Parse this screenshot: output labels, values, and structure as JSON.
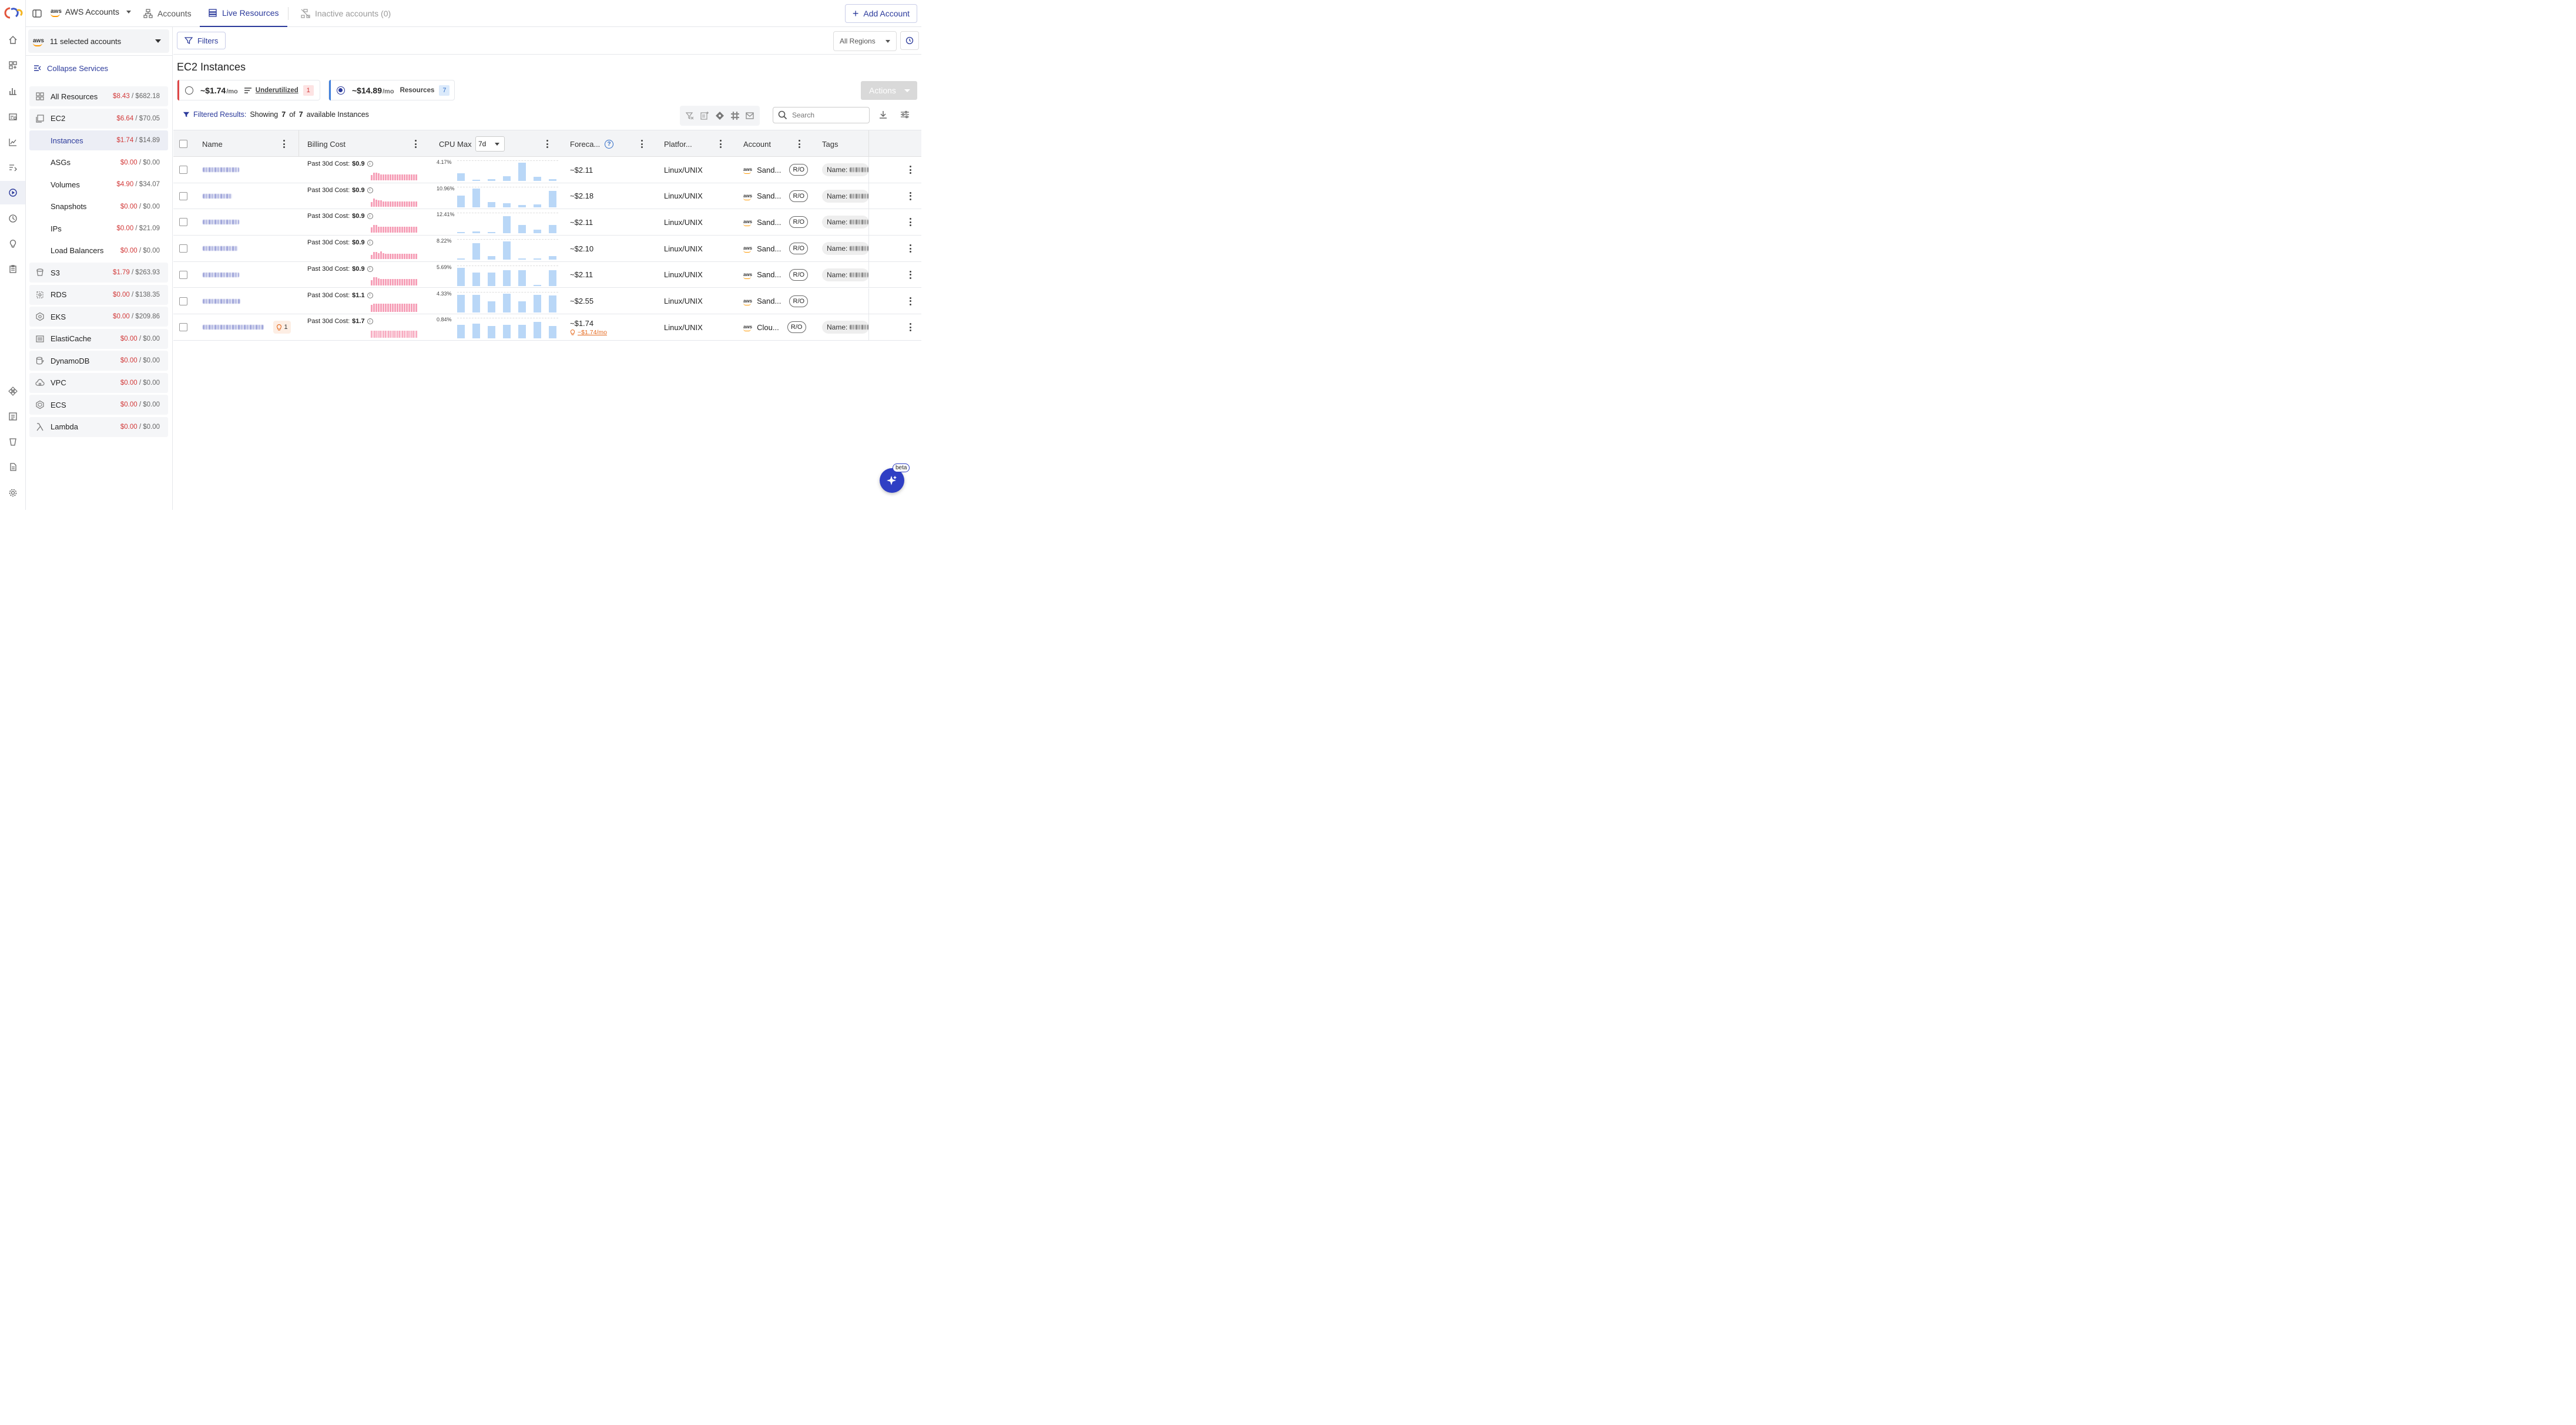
{
  "topbar": {
    "brand_label": "AWS Accounts",
    "tabs": [
      {
        "label": "Accounts"
      },
      {
        "label": "Live Resources"
      },
      {
        "label": "Inactive accounts (0)"
      }
    ],
    "add_account_label": "Add Account"
  },
  "sidebar": {
    "account_selector": "11 selected accounts",
    "collapse_label": "Collapse Services",
    "items": [
      {
        "name": "All Resources",
        "cost": "$8.43",
        "total": "/ $682.18"
      },
      {
        "name": "EC2",
        "cost": "$6.64",
        "total": "/ $70.05"
      },
      {
        "name": "Instances",
        "cost": "$1.74",
        "total": "/ $14.89"
      },
      {
        "name": "ASGs",
        "cost": "$0.00",
        "total": "/ $0.00"
      },
      {
        "name": "Volumes",
        "cost": "$4.90",
        "total": "/ $34.07"
      },
      {
        "name": "Snapshots",
        "cost": "$0.00",
        "total": "/ $0.00"
      },
      {
        "name": "IPs",
        "cost": "$0.00",
        "total": "/ $21.09"
      },
      {
        "name": "Load Balancers",
        "cost": "$0.00",
        "total": "/ $0.00"
      },
      {
        "name": "S3",
        "cost": "$1.79",
        "total": "/ $263.93"
      },
      {
        "name": "RDS",
        "cost": "$0.00",
        "total": "/ $138.35"
      },
      {
        "name": "EKS",
        "cost": "$0.00",
        "total": "/ $209.86"
      },
      {
        "name": "ElastiCache",
        "cost": "$0.00",
        "total": "/ $0.00"
      },
      {
        "name": "DynamoDB",
        "cost": "$0.00",
        "total": "/ $0.00"
      },
      {
        "name": "VPC",
        "cost": "$0.00",
        "total": "/ $0.00"
      },
      {
        "name": "ECS",
        "cost": "$0.00",
        "total": "/ $0.00"
      },
      {
        "name": "Lambda",
        "cost": "$0.00",
        "total": "/ $0.00"
      }
    ]
  },
  "main": {
    "filters_label": "Filters",
    "regions_label": "All Regions",
    "title": "EC2 Instances",
    "cards": [
      {
        "amount": "~$1.74",
        "per": "/mo",
        "label": "Underutilized",
        "count": "1"
      },
      {
        "amount": "~$14.89",
        "per": "/mo",
        "label": "Resources",
        "count": "7"
      }
    ],
    "actions_label": "Actions",
    "filtered": {
      "prefix": "Filtered Results:",
      "showing": "Showing",
      "shown": "7",
      "of": "of",
      "total": "7",
      "suffix": "available Instances"
    },
    "search_placeholder": "Search",
    "columns": {
      "name": "Name",
      "billing": "Billing Cost",
      "cpu": "CPU Max",
      "cpu_range": "7d",
      "forecast": "Foreca...",
      "platform": "Platfor...",
      "account": "Account",
      "tags": "Tags"
    },
    "rows": [
      {
        "past_label": "Past 30d Cost:",
        "past_cost": "$0.9",
        "cpu_peak": "4.17%",
        "cpu_bars": [
          0.4,
          0.05,
          0.1,
          0.25,
          0.95,
          0.2,
          0.1
        ],
        "forecast": "~$2.11",
        "platform": "Linux/UNIX",
        "account": "Sand...",
        "ro": "R/O",
        "tag_label": "Name:"
      },
      {
        "past_label": "Past 30d Cost:",
        "past_cost": "$0.9",
        "cpu_peak": "10.96%",
        "cpu_bars": [
          0.6,
          0.95,
          0.25,
          0.2,
          0.1,
          0.15,
          0.85
        ],
        "forecast": "~$2.18",
        "platform": "Linux/UNIX",
        "account": "Sand...",
        "ro": "R/O",
        "tag_label": "Name:"
      },
      {
        "past_label": "Past 30d Cost:",
        "past_cost": "$0.9",
        "cpu_peak": "12.41%",
        "cpu_bars": [
          0.05,
          0.1,
          0.05,
          0.9,
          0.45,
          0.2,
          0.45
        ],
        "forecast": "~$2.11",
        "platform": "Linux/UNIX",
        "account": "Sand...",
        "ro": "R/O",
        "tag_label": "Name:"
      },
      {
        "past_label": "Past 30d Cost:",
        "past_cost": "$0.9",
        "cpu_peak": "8.22%",
        "cpu_bars": [
          0.05,
          0.85,
          0.2,
          0.95,
          0.05,
          0.05,
          0.2
        ],
        "forecast": "~$2.10",
        "platform": "Linux/UNIX",
        "account": "Sand...",
        "ro": "R/O",
        "tag_label": "Name:"
      },
      {
        "past_label": "Past 30d Cost:",
        "past_cost": "$0.9",
        "cpu_peak": "5.69%",
        "cpu_bars": [
          0.95,
          0.7,
          0.7,
          0.8,
          0.8,
          0.05,
          0.8
        ],
        "forecast": "~$2.11",
        "platform": "Linux/UNIX",
        "account": "Sand...",
        "ro": "R/O",
        "tag_label": "Name:"
      },
      {
        "past_label": "Past 30d Cost:",
        "past_cost": "$1.1",
        "cpu_peak": "4.33%",
        "cpu_bars": [
          0.9,
          0.9,
          0.55,
          0.95,
          0.55,
          0.9,
          0.85
        ],
        "forecast": "~$2.55",
        "platform": "Linux/UNIX",
        "account": "Sand...",
        "ro": "R/O",
        "tag_label": ""
      },
      {
        "past_label": "Past 30d Cost:",
        "past_cost": "$1.7",
        "cpu_peak": "0.84%",
        "cpu_bars": [
          0.7,
          0.75,
          0.65,
          0.7,
          0.7,
          0.85,
          0.65
        ],
        "forecast": "~$1.74",
        "savings": "~$1.74/mo",
        "recommendations": "1",
        "platform": "Linux/UNIX",
        "account": "Clou...",
        "ro": "R/O",
        "tag_label": "Name:"
      }
    ]
  },
  "assistant": {
    "beta_label": "beta"
  },
  "colors": {
    "accent": "#2b3a9b",
    "cost_red": "#d23a3a",
    "cpu_bar": "#b9d7f7",
    "billing_bar": "#f6a0b8",
    "savings": "#e56a1f"
  }
}
